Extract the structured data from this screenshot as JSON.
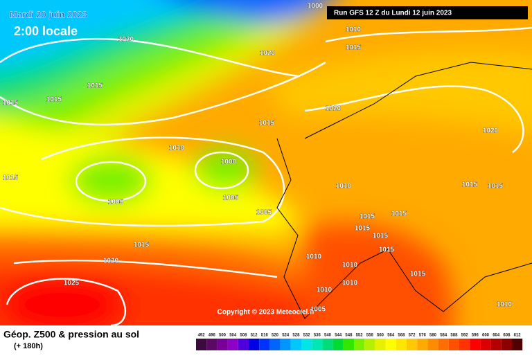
{
  "header": {
    "date": "Mardi 20 juin 2023",
    "time": "2:00 locale",
    "run": "Run GFS 12 Z du Lundi 12 juin 2023"
  },
  "copyright": "Copyright © 2023 Meteociel.fr",
  "footer": {
    "title": "Géop. Z500 & pression au sol",
    "lead": "(+ 180h)"
  },
  "isobar_labels": [
    "1000",
    "1010",
    "1015",
    "1020",
    "1020",
    "1015",
    "1015",
    "1015",
    "1020",
    "1015",
    "1020",
    "1010",
    "1000",
    "1015",
    "1010",
    "1015",
    "1015",
    "1005",
    "1005",
    "1005",
    "1015",
    "1015",
    "1015",
    "1015",
    "1015",
    "1010",
    "1015",
    "1020",
    "1010",
    "1015",
    "1025",
    "1010",
    "1010",
    "1005",
    "1010"
  ],
  "scale": {
    "values": [
      492,
      496,
      500,
      504,
      508,
      512,
      516,
      520,
      524,
      528,
      532,
      536,
      540,
      544,
      548,
      552,
      556,
      560,
      564,
      568,
      572,
      576,
      580,
      584,
      588,
      592,
      596,
      600,
      604,
      608,
      612
    ],
    "colors": [
      "#3c0a3c",
      "#5a0a64",
      "#780096",
      "#8c00c8",
      "#5000dc",
      "#0000e6",
      "#0032ff",
      "#0064ff",
      "#0096ff",
      "#00c8ff",
      "#00e6e6",
      "#00e6b4",
      "#00dc78",
      "#00dc32",
      "#32e600",
      "#78f000",
      "#b4f000",
      "#e6f000",
      "#ffff00",
      "#ffe600",
      "#ffc800",
      "#ffaa00",
      "#ff8c00",
      "#ff6e00",
      "#ff5000",
      "#ff3200",
      "#ff0000",
      "#dc0000",
      "#b40000",
      "#8c0000",
      "#500000"
    ]
  }
}
